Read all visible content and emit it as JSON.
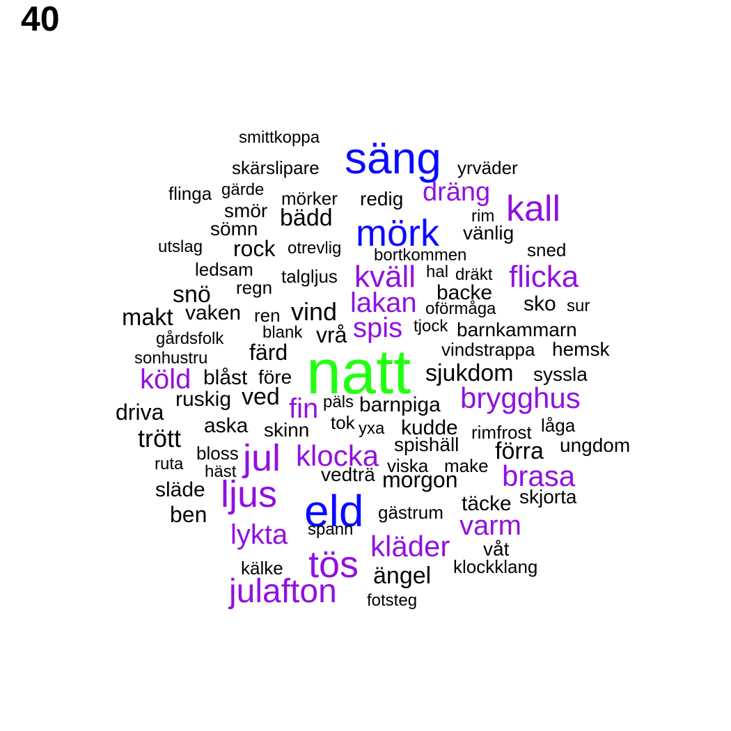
{
  "page_number": "40",
  "palette": {
    "black": "#000000",
    "blue": "#0a0aff",
    "purple": "#9010e0",
    "green": "#22ff11"
  },
  "words": [
    {
      "text": "smittkoppa",
      "color": "black"
    },
    {
      "text": "säng",
      "color": "blue"
    },
    {
      "text": "skärslipare",
      "color": "black"
    },
    {
      "text": "yrväder",
      "color": "black"
    },
    {
      "text": "dräng",
      "color": "purple"
    },
    {
      "text": "flinga",
      "color": "black"
    },
    {
      "text": "gärde",
      "color": "black"
    },
    {
      "text": "mörker",
      "color": "black"
    },
    {
      "text": "redig",
      "color": "black"
    },
    {
      "text": "kall",
      "color": "purple"
    },
    {
      "text": "smör",
      "color": "black"
    },
    {
      "text": "bädd",
      "color": "black"
    },
    {
      "text": "rim",
      "color": "black"
    },
    {
      "text": "mörk",
      "color": "blue"
    },
    {
      "text": "sömn",
      "color": "black"
    },
    {
      "text": "vänlig",
      "color": "black"
    },
    {
      "text": "utslag",
      "color": "black"
    },
    {
      "text": "rock",
      "color": "black"
    },
    {
      "text": "otrevlig",
      "color": "black"
    },
    {
      "text": "bortkommen",
      "color": "black"
    },
    {
      "text": "sned",
      "color": "black"
    },
    {
      "text": "ledsam",
      "color": "black"
    },
    {
      "text": "kväll",
      "color": "purple"
    },
    {
      "text": "hal",
      "color": "black"
    },
    {
      "text": "dräkt",
      "color": "black"
    },
    {
      "text": "flicka",
      "color": "purple"
    },
    {
      "text": "talgljus",
      "color": "black"
    },
    {
      "text": "regn",
      "color": "black"
    },
    {
      "text": "snö",
      "color": "black"
    },
    {
      "text": "backe",
      "color": "black"
    },
    {
      "text": "lakan",
      "color": "purple"
    },
    {
      "text": "sko",
      "color": "black"
    },
    {
      "text": "sur",
      "color": "black"
    },
    {
      "text": "oförmåga",
      "color": "black"
    },
    {
      "text": "makt",
      "color": "black"
    },
    {
      "text": "vaken",
      "color": "black"
    },
    {
      "text": "ren",
      "color": "black"
    },
    {
      "text": "vind",
      "color": "black"
    },
    {
      "text": "spis",
      "color": "purple"
    },
    {
      "text": "tjock",
      "color": "black"
    },
    {
      "text": "barnkammarn",
      "color": "black"
    },
    {
      "text": "blank",
      "color": "black"
    },
    {
      "text": "vrå",
      "color": "black"
    },
    {
      "text": "gårdsfolk",
      "color": "black"
    },
    {
      "text": "färd",
      "color": "black"
    },
    {
      "text": "vindstrappa",
      "color": "black"
    },
    {
      "text": "hemsk",
      "color": "black"
    },
    {
      "text": "sonhustru",
      "color": "black"
    },
    {
      "text": "natt",
      "color": "green"
    },
    {
      "text": "sjukdom",
      "color": "black"
    },
    {
      "text": "syssla",
      "color": "black"
    },
    {
      "text": "köld",
      "color": "purple"
    },
    {
      "text": "blåst",
      "color": "black"
    },
    {
      "text": "före",
      "color": "black"
    },
    {
      "text": "ruskig",
      "color": "black"
    },
    {
      "text": "ved",
      "color": "black"
    },
    {
      "text": "brygghus",
      "color": "purple"
    },
    {
      "text": "päls",
      "color": "black"
    },
    {
      "text": "barnpiga",
      "color": "black"
    },
    {
      "text": "fin",
      "color": "purple"
    },
    {
      "text": "driva",
      "color": "black"
    },
    {
      "text": "tok",
      "color": "black"
    },
    {
      "text": "aska",
      "color": "black"
    },
    {
      "text": "skinn",
      "color": "black"
    },
    {
      "text": "yxa",
      "color": "black"
    },
    {
      "text": "kudde",
      "color": "black"
    },
    {
      "text": "rimfrost",
      "color": "black"
    },
    {
      "text": "låga",
      "color": "black"
    },
    {
      "text": "trött",
      "color": "black"
    },
    {
      "text": "spishäll",
      "color": "black"
    },
    {
      "text": "ungdom",
      "color": "black"
    },
    {
      "text": "förra",
      "color": "black"
    },
    {
      "text": "bloss",
      "color": "black"
    },
    {
      "text": "jul",
      "color": "purple"
    },
    {
      "text": "klocka",
      "color": "purple"
    },
    {
      "text": "ruta",
      "color": "black"
    },
    {
      "text": "viska",
      "color": "black"
    },
    {
      "text": "make",
      "color": "black"
    },
    {
      "text": "häst",
      "color": "black"
    },
    {
      "text": "vedträ",
      "color": "black"
    },
    {
      "text": "morgon",
      "color": "black"
    },
    {
      "text": "brasa",
      "color": "purple"
    },
    {
      "text": "släde",
      "color": "black"
    },
    {
      "text": "ljus",
      "color": "purple"
    },
    {
      "text": "skjorta",
      "color": "black"
    },
    {
      "text": "eld",
      "color": "blue"
    },
    {
      "text": "täcke",
      "color": "black"
    },
    {
      "text": "ben",
      "color": "black"
    },
    {
      "text": "gästrum",
      "color": "black"
    },
    {
      "text": "varm",
      "color": "purple"
    },
    {
      "text": "spann",
      "color": "black"
    },
    {
      "text": "lykta",
      "color": "purple"
    },
    {
      "text": "kläder",
      "color": "purple"
    },
    {
      "text": "våt",
      "color": "black"
    },
    {
      "text": "tös",
      "color": "purple"
    },
    {
      "text": "kälke",
      "color": "black"
    },
    {
      "text": "klockklang",
      "color": "black"
    },
    {
      "text": "ängel",
      "color": "black"
    },
    {
      "text": "julafton",
      "color": "purple"
    },
    {
      "text": "fotsteg",
      "color": "black"
    }
  ]
}
